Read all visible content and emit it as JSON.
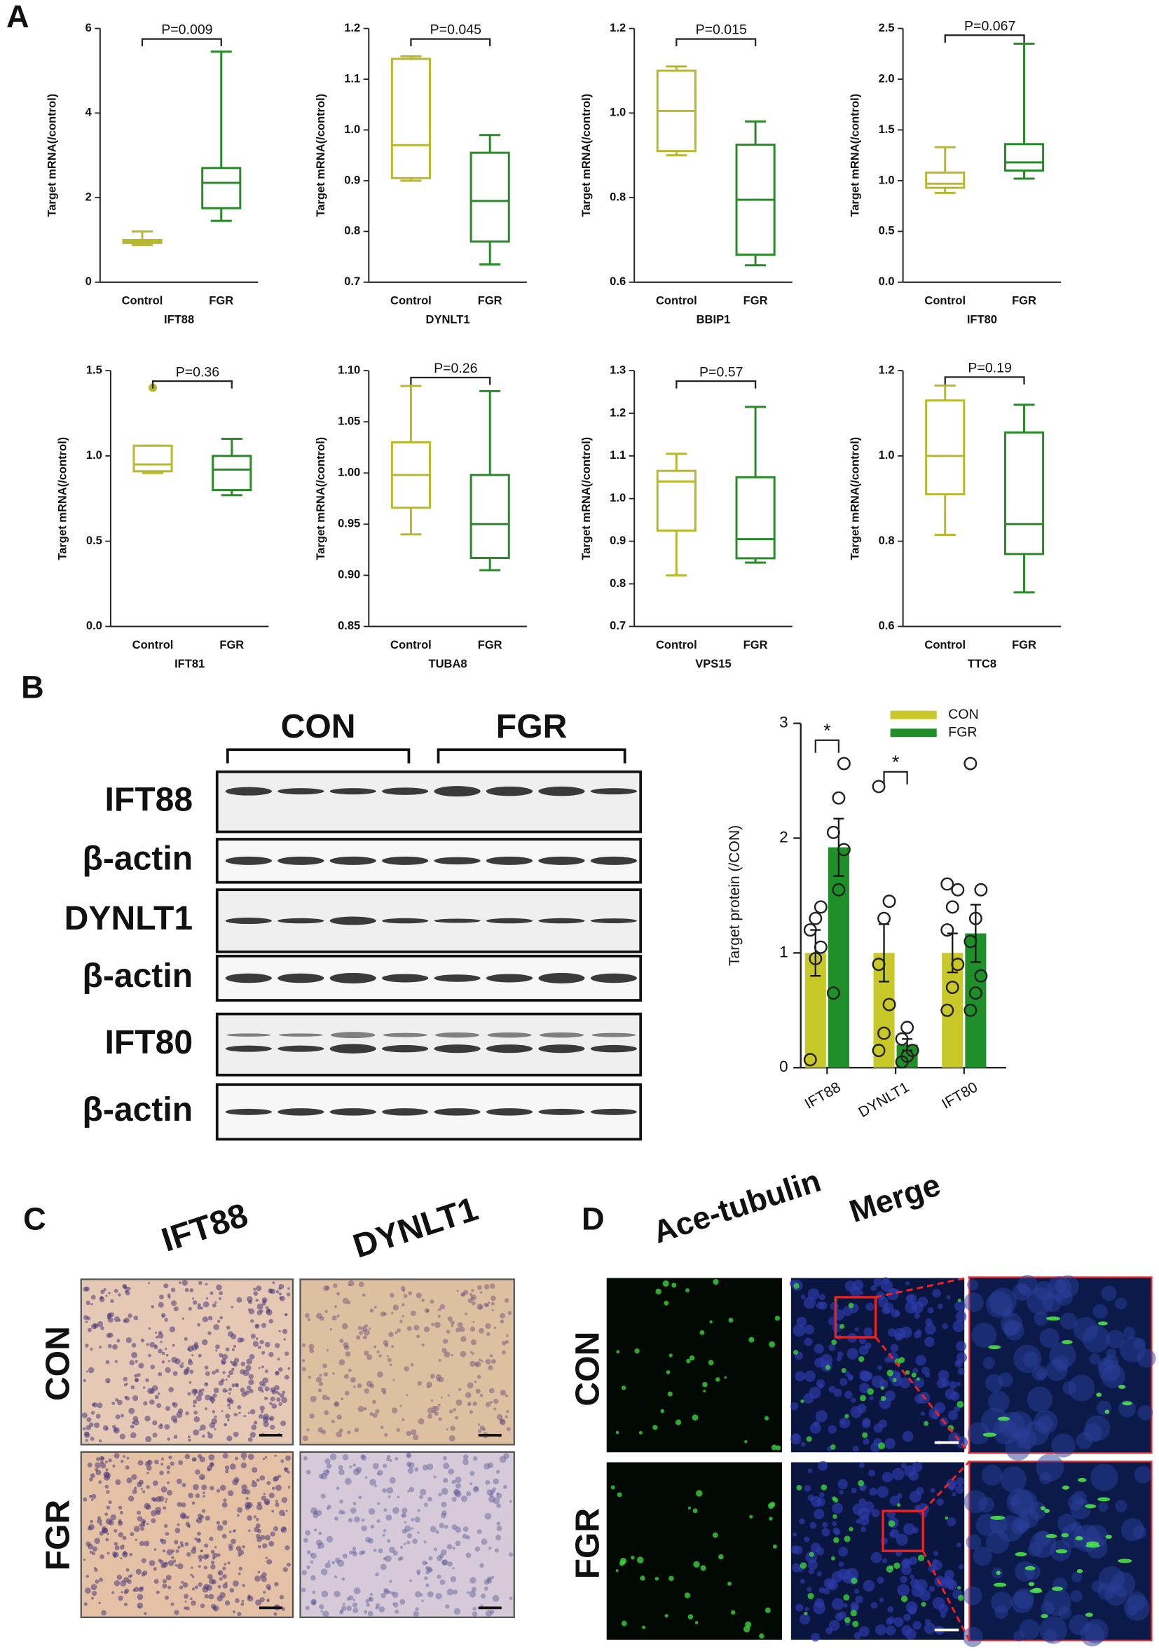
{
  "panel_labels": [
    "A",
    "B",
    "C",
    "D"
  ],
  "chart_data": [
    {
      "type": "box",
      "ylabel": "Target mRNA(/control)",
      "xlabel": "IFT88",
      "annotation": "P=0.009",
      "categories": [
        "Control",
        "FGR"
      ],
      "colors": [
        "#b8b82e",
        "#2a8a2a"
      ],
      "boxes": [
        {
          "min": 0.88,
          "q1": 0.93,
          "median": 0.97,
          "q3": 1.0,
          "max": 1.2
        },
        {
          "min": 1.45,
          "q1": 1.75,
          "median": 2.35,
          "q3": 2.7,
          "max": 5.45
        }
      ],
      "ylim": [
        0,
        6
      ],
      "yticks": [
        0,
        2,
        4,
        6
      ]
    },
    {
      "type": "box",
      "ylabel": "Target mRNA(/control)",
      "xlabel": "DYNLT1",
      "annotation": "P=0.045",
      "categories": [
        "Control",
        "FGR"
      ],
      "colors": [
        "#b8b82e",
        "#2a8a2a"
      ],
      "boxes": [
        {
          "min": 0.9,
          "q1": 0.905,
          "median": 0.97,
          "q3": 1.14,
          "max": 1.145
        },
        {
          "min": 0.735,
          "q1": 0.78,
          "median": 0.86,
          "q3": 0.955,
          "max": 0.99
        }
      ],
      "ylim": [
        0.7,
        1.2
      ],
      "yticks": [
        0.7,
        0.8,
        0.9,
        {
          "value": 1,
          "label": "1.0"
        },
        1.1,
        1.2
      ]
    },
    {
      "type": "box",
      "ylabel": "Target mRNA(/control)",
      "xlabel": "BBIP1",
      "annotation": "P=0.015",
      "categories": [
        "Control",
        "FGR"
      ],
      "colors": [
        "#b8b82e",
        "#2a8a2a"
      ],
      "boxes": [
        {
          "min": 0.9,
          "q1": 0.91,
          "median": 1.005,
          "q3": 1.1,
          "max": 1.11
        },
        {
          "min": 0.64,
          "q1": 0.665,
          "median": 0.795,
          "q3": 0.925,
          "max": 0.98
        }
      ],
      "ylim": [
        0.6,
        1.2
      ],
      "yticks": [
        0.6,
        0.8,
        {
          "value": 1,
          "label": "1.0"
        },
        1.2
      ]
    },
    {
      "type": "box",
      "ylabel": "Target mRNA(/control)",
      "xlabel": "IFT80",
      "annotation": "P=0.067",
      "categories": [
        "Control",
        "FGR"
      ],
      "colors": [
        "#b8b82e",
        "#2a8a2a"
      ],
      "boxes": [
        {
          "min": 0.88,
          "q1": 0.93,
          "median": 0.97,
          "q3": 1.08,
          "max": 1.33
        },
        {
          "min": 1.02,
          "q1": 1.1,
          "median": 1.18,
          "q3": 1.36,
          "max": 2.35
        }
      ],
      "ylim": [
        0,
        2.5
      ],
      "yticks": [
        {
          "value": 0,
          "label": "0.0"
        },
        0.5,
        {
          "value": 1,
          "label": "1.0"
        },
        1.5,
        {
          "value": 2,
          "label": "2.0"
        },
        2.5
      ]
    },
    {
      "type": "box",
      "ylabel": "Target mRNA(/control)",
      "xlabel": "IFT81",
      "annotation": "P=0.36",
      "categories": [
        "Control",
        "FGR"
      ],
      "colors": [
        "#b8b82e",
        "#2a8a2a"
      ],
      "boxes": [
        {
          "min": 0.9,
          "q1": 0.91,
          "median": 0.95,
          "q3": 1.06,
          "max": 1.06,
          "outliers": [
            1.4
          ]
        },
        {
          "min": 0.77,
          "q1": 0.8,
          "median": 0.92,
          "q3": 1.0,
          "max": 1.1
        }
      ],
      "ylim": [
        0,
        1.5
      ],
      "yticks": [
        {
          "value": 0,
          "label": "0.0"
        },
        0.5,
        {
          "value": 1,
          "label": "1.0"
        },
        1.5
      ]
    },
    {
      "type": "box",
      "ylabel": "Target mRNA(/control)",
      "xlabel": "TUBA8",
      "annotation": "P=0.26",
      "categories": [
        "Control",
        "FGR"
      ],
      "colors": [
        "#b8b82e",
        "#2a8a2a"
      ],
      "boxes": [
        {
          "min": 0.94,
          "q1": 0.966,
          "median": 0.998,
          "q3": 1.03,
          "max": 1.085
        },
        {
          "min": 0.905,
          "q1": 0.917,
          "median": 0.95,
          "q3": 0.998,
          "max": 1.08
        }
      ],
      "ylim": [
        0.85,
        1.1
      ],
      "yticks": [
        0.85,
        {
          "value": 0.9,
          "label": "0.90"
        },
        0.95,
        {
          "value": 1,
          "label": "1.00"
        },
        1.05,
        {
          "value": 1.1,
          "label": "1.10"
        }
      ]
    },
    {
      "type": "box",
      "ylabel": "Target mRNA(/control)",
      "xlabel": "VPS15",
      "annotation": "P=0.57",
      "categories": [
        "Control",
        "FGR"
      ],
      "colors": [
        "#b8b82e",
        "#2a8a2a"
      ],
      "boxes": [
        {
          "min": 0.82,
          "q1": 0.925,
          "median": 1.04,
          "q3": 1.065,
          "max": 1.105
        },
        {
          "min": 0.85,
          "q1": 0.86,
          "median": 0.905,
          "q3": 1.05,
          "max": 1.215
        }
      ],
      "ylim": [
        0.7,
        1.3
      ],
      "yticks": [
        0.7,
        0.8,
        0.9,
        {
          "value": 1,
          "label": "1.0"
        },
        1.1,
        1.2,
        1.3
      ]
    },
    {
      "type": "box",
      "ylabel": "Target mRNA(/control)",
      "xlabel": "TTC8",
      "annotation": "P=0.19",
      "categories": [
        "Control",
        "FGR"
      ],
      "colors": [
        "#b8b82e",
        "#2a8a2a"
      ],
      "boxes": [
        {
          "min": 0.815,
          "q1": 0.91,
          "median": 1.0,
          "q3": 1.13,
          "max": 1.165
        },
        {
          "min": 0.68,
          "q1": 0.77,
          "median": 0.84,
          "q3": 1.055,
          "max": 1.12
        }
      ],
      "ylim": [
        0.6,
        1.2
      ],
      "yticks": [
        0.6,
        0.8,
        {
          "value": 1,
          "label": "1.0"
        },
        1.2
      ]
    },
    {
      "type": "bar",
      "ylabel": "Target protein (/CON)",
      "categories": [
        "IFT88",
        "DYNLT1",
        "IFT80"
      ],
      "series": [
        {
          "name": "CON",
          "color": "#c8c828",
          "values": [
            1,
            1,
            1
          ],
          "errors": [
            0.2,
            0.25,
            0.17
          ],
          "points": [
            [
              0.07,
              0.95,
              1.05,
              1.2,
              1.3,
              1.4
            ],
            [
              0.15,
              0.3,
              0.55,
              0.9,
              1.3,
              1.45,
              2.45
            ],
            [
              0.5,
              0.7,
              0.9,
              1.2,
              1.4,
              1.55,
              1.6
            ]
          ]
        },
        {
          "name": "FGR",
          "color": "#1f8f2a",
          "values": [
            1.92,
            0.2,
            1.17
          ],
          "errors": [
            0.25,
            0.05,
            0.25
          ],
          "points": [
            [
              0.65,
              1.55,
              1.9,
              2.05,
              2.35,
              2.65
            ],
            [
              0.05,
              0.1,
              0.15,
              0.25,
              0.35
            ],
            [
              0.5,
              0.65,
              0.8,
              1.1,
              1.3,
              1.55,
              2.65
            ]
          ]
        }
      ],
      "annotations": [
        "*",
        "*"
      ],
      "ylim": [
        0,
        3
      ],
      "yticks": [
        0,
        1,
        2,
        3
      ],
      "legend": "top-right"
    }
  ],
  "western_blot": {
    "groups": [
      "CON",
      "FGR"
    ],
    "rows": [
      "IFT88",
      "β-actin",
      "DYNLT1",
      "β-actin",
      "IFT80",
      "β-actin"
    ]
  },
  "ihc": {
    "columns": [
      "IFT88",
      "DYNLT1"
    ],
    "rows": [
      "CON",
      "FGR"
    ]
  },
  "immunofluorescence": {
    "columns": [
      "Ace-tubulin",
      "Merge"
    ],
    "rows": [
      "CON",
      "FGR"
    ]
  }
}
